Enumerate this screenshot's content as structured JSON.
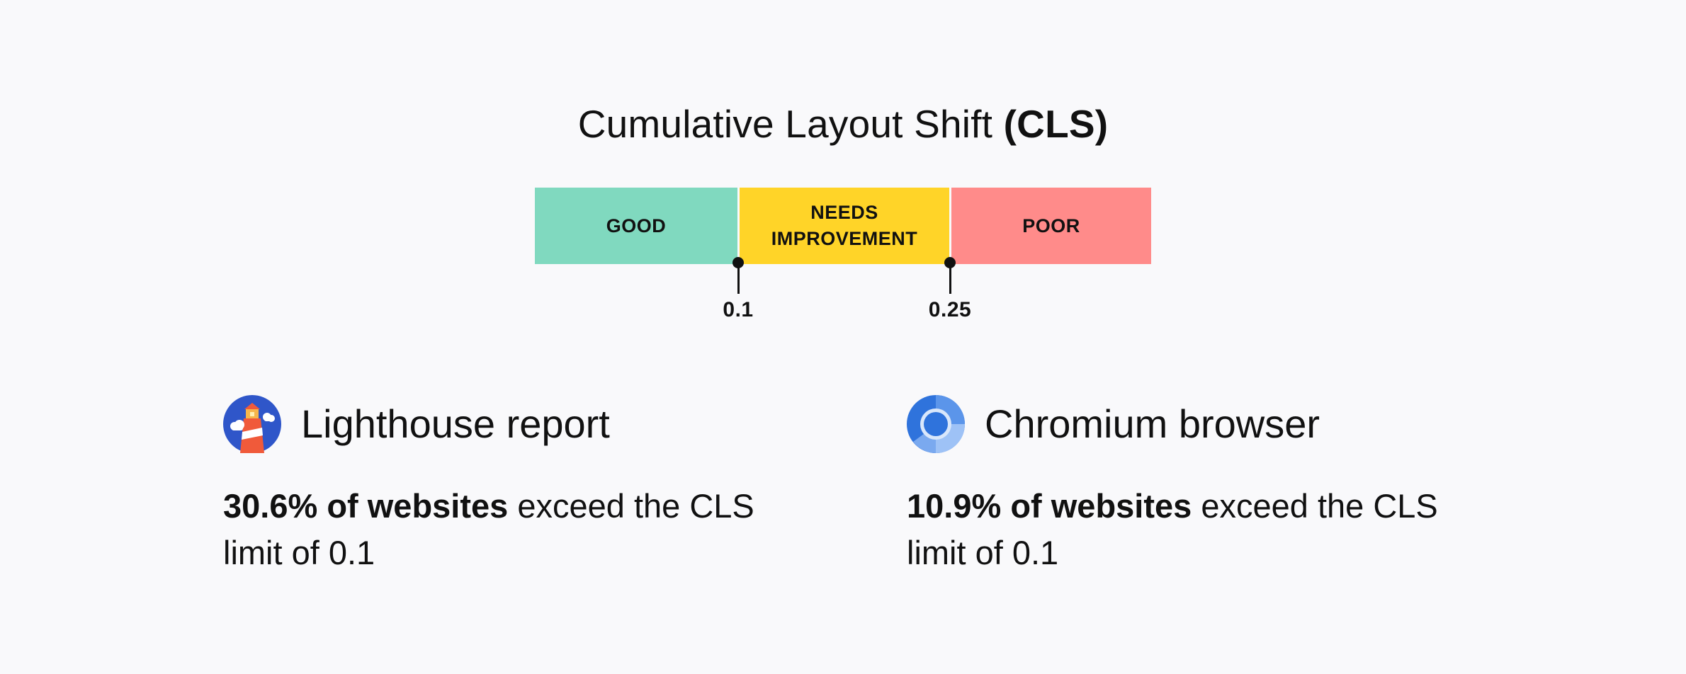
{
  "title": {
    "main": "Cumulative Layout Shift",
    "abbr": "(CLS)"
  },
  "scale": {
    "segments": [
      {
        "label": "GOOD",
        "color": "#80d9bf"
      },
      {
        "label_line1": "NEEDS",
        "label_line2": "IMPROVEMENT",
        "color": "#ffd428"
      },
      {
        "label": "POOR",
        "color": "#ff8b8a"
      }
    ],
    "thresholds": [
      "0.1",
      "0.25"
    ]
  },
  "cards": {
    "lighthouse": {
      "icon": "lighthouse-icon",
      "title": "Lighthouse report",
      "stat_bold": "30.6% of websites",
      "stat_rest": " exceed the CLS limit of 0.1"
    },
    "chromium": {
      "icon": "chromium-icon",
      "title": "Chromium browser",
      "stat_bold": "10.9% of websites",
      "stat_rest": " exceed the CLS limit of 0.1"
    }
  }
}
